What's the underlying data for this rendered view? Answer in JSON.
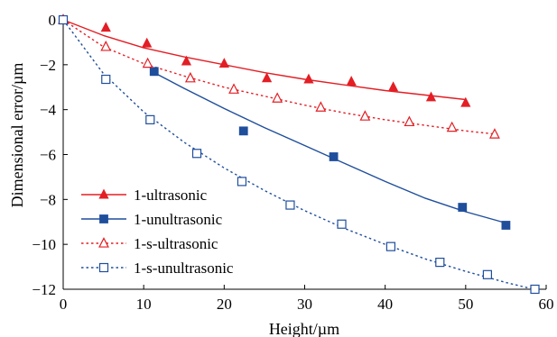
{
  "chart_data": {
    "type": "scatter",
    "xlabel": "Height/µm",
    "ylabel": "Dimensional error/µm",
    "xlim": [
      0,
      60
    ],
    "ylim": [
      -12,
      0
    ],
    "xticks": [
      0,
      10,
      20,
      30,
      40,
      50,
      60
    ],
    "yticks": [
      0,
      -2,
      -4,
      -6,
      -8,
      -10,
      -12
    ],
    "xtick_labels": [
      "0",
      "10",
      "20",
      "30",
      "40",
      "50",
      "60"
    ],
    "ytick_labels": [
      "0",
      "−2",
      "−4",
      "−6",
      "−8",
      "−10",
      "−12"
    ],
    "legend_position": "bottom-left",
    "grid": false,
    "series": [
      {
        "name": "1-ultrasonic",
        "color": "#e31e24",
        "marker": "filled-triangle",
        "line_style": "solid",
        "x": [
          0,
          5.3,
          10.4,
          15.3,
          20.0,
          25.3,
          30.5,
          35.8,
          41.0,
          45.7,
          50.0
        ],
        "y": [
          0,
          -0.35,
          -1.05,
          -1.85,
          -1.95,
          -2.6,
          -2.65,
          -2.75,
          -3.0,
          -3.45,
          -3.7
        ],
        "fit": {
          "x": [
            0,
            5,
            10,
            15,
            20,
            25,
            30,
            35,
            40,
            45,
            50
          ],
          "y": [
            0,
            -0.7,
            -1.25,
            -1.65,
            -2.0,
            -2.35,
            -2.65,
            -2.9,
            -3.15,
            -3.35,
            -3.55
          ]
        }
      },
      {
        "name": "1-unultrasonic",
        "color": "#1f4e9c",
        "marker": "filled-square",
        "line_style": "solid",
        "x": [
          0,
          11.3,
          22.4,
          33.6,
          49.6,
          55.0
        ],
        "y": [
          0,
          -2.3,
          -4.95,
          -6.1,
          -8.35,
          -9.15
        ],
        "fit": {
          "x": [
            11.3,
            15,
            20,
            25,
            30,
            35,
            40,
            45,
            50,
            55
          ],
          "y": [
            -2.35,
            -3.05,
            -3.95,
            -4.8,
            -5.6,
            -6.4,
            -7.2,
            -7.95,
            -8.55,
            -9.05
          ]
        }
      },
      {
        "name": "1-s-ultrasonic",
        "color": "#e31e24",
        "marker": "open-triangle",
        "line_style": "dotted",
        "x": [
          0,
          5.3,
          10.5,
          15.8,
          21.2,
          26.6,
          32.0,
          37.5,
          43.0,
          48.3,
          53.6
        ],
        "y": [
          0,
          -1.2,
          -1.95,
          -2.6,
          -3.1,
          -3.5,
          -3.9,
          -4.3,
          -4.55,
          -4.8,
          -5.1
        ],
        "fit": {
          "x": [
            0,
            5,
            10,
            15,
            20,
            25,
            30,
            35,
            40,
            45,
            50,
            54
          ],
          "y": [
            0,
            -1.2,
            -1.95,
            -2.5,
            -3.0,
            -3.4,
            -3.8,
            -4.15,
            -4.45,
            -4.7,
            -4.95,
            -5.1
          ]
        }
      },
      {
        "name": "1-s-unultrasonic",
        "color": "#1f4e9c",
        "marker": "open-square",
        "line_style": "dotted",
        "x": [
          0,
          5.3,
          10.8,
          16.6,
          22.2,
          28.2,
          34.6,
          40.7,
          46.8,
          52.7,
          58.6
        ],
        "y": [
          0,
          -2.65,
          -4.45,
          -5.95,
          -7.2,
          -8.25,
          -9.1,
          -10.1,
          -10.8,
          -11.35,
          -12.0
        ],
        "fit": {
          "x": [
            0,
            5,
            10,
            15,
            20,
            25,
            30,
            35,
            40,
            45,
            50,
            55,
            59
          ],
          "y": [
            0,
            -2.4,
            -4.1,
            -5.45,
            -6.6,
            -7.6,
            -8.5,
            -9.3,
            -10.0,
            -10.65,
            -11.2,
            -11.7,
            -12.05
          ]
        }
      }
    ]
  }
}
